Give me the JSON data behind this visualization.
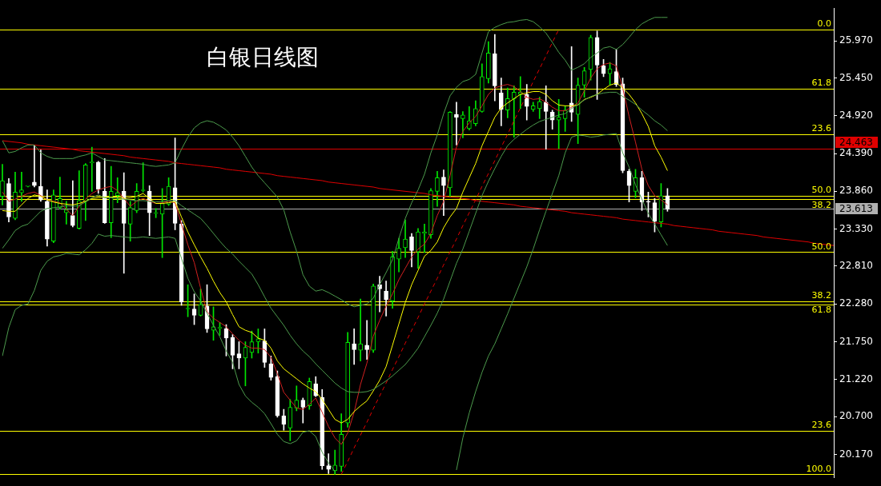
{
  "chart_data": {
    "type": "candlestick",
    "title": "白银日线图",
    "categories": [
      null,
      null,
      null,
      null,
      null,
      null,
      null,
      null,
      null,
      null,
      null,
      null,
      null,
      null,
      null,
      null,
      null,
      null,
      null,
      null,
      null,
      null,
      null,
      null,
      null,
      null,
      null,
      null,
      null,
      null,
      null,
      null,
      null,
      null,
      null,
      null,
      null,
      null,
      null,
      null,
      null,
      null,
      null,
      null,
      null,
      null,
      null,
      null,
      null,
      null,
      null,
      null,
      null,
      null,
      null,
      null,
      null,
      null,
      null,
      null,
      null,
      null,
      null,
      null,
      null,
      null,
      null,
      null,
      null,
      null,
      null,
      null,
      null,
      null,
      null,
      null,
      null,
      null,
      null,
      null,
      null,
      null,
      null,
      null,
      null,
      null,
      null,
      null,
      null,
      null,
      null,
      null,
      null,
      null,
      null,
      null,
      null,
      null,
      null,
      null,
      null,
      null,
      null,
      null,
      null,
      null,
      null,
      null,
      null,
      null,
      null,
      null,
      null,
      null,
      null,
      null,
      null,
      null,
      null,
      null,
      null,
      null,
      null,
      null,
      null,
      null,
      null,
      null,
      null,
      null,
      null
    ],
    "ohlc": [
      [
        23.79,
        24.24,
        23.67,
        24.01
      ],
      [
        23.97,
        24.04,
        23.43,
        23.5
      ],
      [
        23.48,
        24.13,
        23.46,
        23.85
      ],
      [
        23.84,
        24.13,
        23.72,
        23.88
      ],
      [
        23.93,
        23.94,
        23.92,
        23.93
      ],
      [
        23.99,
        24.51,
        23.92,
        23.94
      ],
      [
        23.93,
        24.44,
        23.72,
        23.74
      ],
      [
        23.72,
        23.88,
        23.09,
        23.19
      ],
      [
        23.16,
        23.88,
        23.14,
        23.81
      ],
      [
        23.63,
        24.06,
        23.61,
        23.76
      ],
      [
        23.56,
        23.72,
        23.4,
        23.6
      ],
      [
        23.52,
        24.01,
        23.36,
        23.38
      ],
      [
        23.34,
        24.15,
        23.33,
        23.73
      ],
      [
        23.72,
        24.25,
        23.45,
        24.23
      ],
      [
        24.26,
        24.48,
        23.86,
        24.26
      ],
      [
        24.27,
        24.28,
        23.83,
        23.89
      ],
      [
        23.86,
        24.32,
        23.41,
        23.42
      ],
      [
        23.42,
        24.21,
        23.21,
        23.86
      ],
      [
        23.8,
        24.05,
        23.7,
        23.84
      ],
      [
        23.86,
        24.12,
        22.71,
        23.41
      ],
      [
        23.4,
        23.72,
        23.16,
        23.63
      ],
      [
        23.59,
        23.97,
        23.56,
        23.86
      ],
      [
        23.87,
        24.26,
        23.85,
        23.87
      ],
      [
        23.86,
        23.94,
        23.24,
        23.56
      ],
      [
        23.55,
        23.62,
        23.49,
        23.55
      ],
      [
        23.54,
        23.9,
        22.93,
        23.69
      ],
      [
        23.68,
        24.05,
        23.66,
        23.93
      ],
      [
        23.91,
        24.61,
        23.32,
        23.41
      ],
      [
        23.4,
        23.45,
        22.26,
        22.31
      ],
      [
        22.21,
        22.55,
        22.1,
        22.21
      ],
      [
        22.21,
        22.42,
        21.99,
        22.12
      ],
      [
        22.12,
        22.49,
        22.11,
        22.27
      ],
      [
        22.25,
        22.55,
        21.88,
        21.93
      ],
      [
        21.91,
        22.24,
        21.77,
        21.96
      ],
      [
        21.94,
        22.02,
        21.84,
        21.94
      ],
      [
        21.93,
        21.99,
        21.55,
        21.8
      ],
      [
        21.81,
        21.85,
        21.37,
        21.56
      ],
      [
        21.58,
        21.75,
        21.37,
        21.52
      ],
      [
        21.52,
        21.75,
        21.13,
        21.67
      ],
      [
        21.6,
        21.9,
        21.52,
        21.75
      ],
      [
        21.75,
        21.93,
        21.59,
        21.79
      ],
      [
        21.76,
        21.93,
        21.39,
        21.46
      ],
      [
        21.44,
        21.55,
        21.21,
        21.25
      ],
      [
        21.26,
        21.34,
        20.69,
        20.71
      ],
      [
        20.71,
        20.8,
        20.51,
        20.59
      ],
      [
        20.54,
        20.94,
        20.36,
        20.83
      ],
      [
        20.82,
        21.13,
        20.78,
        20.93
      ],
      [
        20.93,
        20.96,
        20.61,
        20.83
      ],
      [
        20.85,
        21.24,
        20.8,
        21.19
      ],
      [
        21.16,
        21.26,
        20.98,
        20.99
      ],
      [
        20.97,
        21.08,
        19.96,
        20.01
      ],
      [
        20.01,
        20.18,
        19.9,
        19.96
      ],
      [
        19.94,
        20.23,
        19.89,
        20.02
      ],
      [
        20.0,
        20.74,
        19.93,
        20.45
      ],
      [
        20.61,
        21.88,
        20.55,
        21.74
      ],
      [
        21.72,
        21.93,
        21.43,
        21.64
      ],
      [
        21.63,
        22.35,
        21.48,
        21.72
      ],
      [
        21.7,
        22.05,
        21.5,
        21.64
      ],
      [
        21.63,
        22.56,
        21.6,
        22.53
      ],
      [
        22.55,
        22.67,
        22.17,
        22.49
      ],
      [
        22.46,
        22.6,
        22.11,
        22.34
      ],
      [
        22.32,
        23.02,
        22.22,
        22.94
      ],
      [
        22.91,
        23.2,
        22.73,
        23.06
      ],
      [
        23.07,
        23.46,
        22.93,
        23.19
      ],
      [
        23.22,
        23.27,
        22.8,
        23.03
      ],
      [
        23.01,
        23.34,
        22.78,
        23.29
      ],
      [
        23.27,
        23.4,
        23.0,
        23.29
      ],
      [
        23.25,
        23.9,
        23.2,
        23.87
      ],
      [
        23.86,
        24.14,
        23.65,
        24.05
      ],
      [
        24.06,
        24.16,
        23.52,
        23.94
      ],
      [
        23.91,
        24.98,
        23.79,
        24.97
      ],
      [
        24.94,
        25.11,
        24.51,
        24.9
      ],
      [
        24.88,
        24.98,
        24.61,
        24.93
      ],
      [
        24.74,
        25.05,
        24.72,
        24.85
      ],
      [
        24.81,
        25.13,
        24.78,
        25.02
      ],
      [
        24.98,
        25.65,
        24.97,
        25.47
      ],
      [
        25.44,
        25.96,
        25.38,
        25.8
      ],
      [
        25.79,
        26.06,
        25.13,
        25.34
      ],
      [
        25.24,
        25.45,
        24.78,
        25.01
      ],
      [
        25.0,
        25.31,
        24.89,
        25.16
      ],
      [
        25.16,
        25.34,
        24.62,
        25.25
      ],
      [
        25.22,
        25.47,
        25.02,
        25.25
      ],
      [
        25.22,
        25.36,
        24.86,
        25.05
      ],
      [
        25.01,
        25.11,
        24.98,
        25.06
      ],
      [
        25.02,
        25.18,
        24.88,
        25.12
      ],
      [
        25.11,
        25.34,
        24.45,
        24.98
      ],
      [
        24.97,
        25.0,
        24.73,
        24.86
      ],
      [
        24.86,
        25.15,
        24.46,
        24.9
      ],
      [
        24.88,
        25.06,
        24.7,
        25.0
      ],
      [
        25.1,
        25.89,
        24.84,
        24.97
      ],
      [
        24.94,
        25.45,
        24.53,
        25.35
      ],
      [
        25.35,
        25.6,
        25.18,
        25.55
      ],
      [
        25.57,
        26.05,
        25.42,
        26.02
      ],
      [
        26.02,
        26.11,
        25.15,
        25.63
      ],
      [
        25.62,
        25.71,
        25.47,
        25.51
      ],
      [
        25.51,
        25.67,
        25.35,
        25.58
      ],
      [
        25.54,
        25.85,
        25.33,
        25.36
      ],
      [
        25.37,
        25.45,
        24.12,
        24.15
      ],
      [
        24.14,
        24.17,
        23.71,
        23.94
      ],
      [
        23.86,
        24.17,
        23.77,
        24.05
      ],
      [
        24.05,
        24.14,
        23.59,
        23.71
      ],
      [
        23.72,
        23.85,
        23.5,
        23.71
      ],
      [
        23.7,
        23.76,
        23.29,
        23.44
      ],
      [
        23.43,
        23.97,
        23.36,
        23.8
      ],
      [
        23.8,
        23.9,
        23.58,
        23.61
      ],
      null,
      null,
      null,
      null,
      null,
      null,
      null,
      null,
      null,
      null,
      null,
      null,
      null,
      null,
      null,
      null,
      null,
      null,
      null,
      null,
      null,
      null,
      null,
      null,
      null,
      null
    ],
    "colors": [
      "#00e600",
      "#ffffff",
      "#00e600",
      "#00e600",
      "#00e600",
      "#ffffff",
      "#ffffff",
      "#ffffff",
      "#00e600",
      "#00e600",
      "#00e600",
      "#ffffff",
      "#00e600",
      "#00e600",
      "#00e600",
      "#ffffff",
      "#ffffff",
      "#00e600",
      "#00e600",
      "#ffffff",
      "#00e600",
      "#00e600",
      "#00e600",
      "#ffffff",
      "#00e600",
      "#00e600",
      "#00e600",
      "#ffffff",
      "#ffffff",
      "#00e600",
      "#ffffff",
      "#00e600",
      "#ffffff",
      "#00e600",
      "#00e600",
      "#ffffff",
      "#ffffff",
      "#ffffff",
      "#00e600",
      "#00e600",
      "#00e600",
      "#ffffff",
      "#ffffff",
      "#ffffff",
      "#ffffff",
      "#00e600",
      "#00e600",
      "#ffffff",
      "#00e600",
      "#ffffff",
      "#ffffff",
      "#ffffff",
      "#00e600",
      "#00e600",
      "#00e600",
      "#ffffff",
      "#00e600",
      "#ffffff",
      "#00e600",
      "#ffffff",
      "#ffffff",
      "#00e600",
      "#00e600",
      "#00e600",
      "#ffffff",
      "#00e600",
      "#00e600",
      "#00e600",
      "#00e600",
      "#ffffff",
      "#00e600",
      "#ffffff",
      "#00e600",
      "#00e600",
      "#00e600",
      "#00e600",
      "#00e600",
      "#ffffff",
      "#ffffff",
      "#00e600",
      "#00e600",
      "#00e600",
      "#ffffff",
      "#00e600",
      "#00e600",
      "#ffffff",
      "#ffffff",
      "#00e600",
      "#00e600",
      "#ffffff",
      "#00e600",
      "#00e600",
      "#00e600",
      "#ffffff",
      "#ffffff",
      "#00e600",
      "#ffffff",
      "#ffffff",
      "#ffffff",
      "#00e600",
      "#ffffff",
      "#ffffff",
      "#ffffff",
      "#00e600",
      "#ffffff",
      null,
      null,
      null,
      null,
      null,
      null,
      null,
      null,
      null,
      null,
      null,
      null,
      null,
      null,
      null,
      null,
      null,
      null,
      null,
      null,
      null,
      null,
      null,
      null,
      null,
      null
    ],
    "series": [
      {
        "type": "line",
        "color": "#4c9a4c",
        "values": [
          24.57,
          24.4,
          24.42,
          24.47,
          24.51,
          24.51,
          24.4,
          24.35,
          24.32,
          24.32,
          24.32,
          24.32,
          24.35,
          24.37,
          24.4,
          24.35,
          24.3,
          24.29,
          24.28,
          24.27,
          24.26,
          24.25,
          24.24,
          24.22,
          24.21,
          24.22,
          24.23,
          24.26,
          24.45,
          24.62,
          24.75,
          24.82,
          24.85,
          24.83,
          24.78,
          24.72,
          24.62,
          24.5,
          24.35,
          24.2,
          24.08,
          23.98,
          23.88,
          23.78,
          23.6,
          23.29,
          23.02,
          22.69,
          22.53,
          22.46,
          22.48,
          22.44,
          22.39,
          22.34,
          22.28,
          22.24,
          22.26,
          22.28,
          22.36,
          22.55,
          22.72,
          22.9,
          23.2,
          23.48,
          23.7,
          23.88,
          24.1,
          24.4,
          24.65,
          24.95,
          25.2,
          25.32,
          25.4,
          25.43,
          25.5,
          25.8,
          26.1,
          26.16,
          26.2,
          26.23,
          26.24,
          26.26,
          26.27,
          26.24,
          26.17,
          26.08,
          25.95,
          25.81,
          25.7,
          25.56,
          25.6,
          25.65,
          25.74,
          25.8,
          25.87,
          25.89,
          25.85,
          25.92,
          26.02,
          26.13,
          26.21,
          26.26,
          26.3,
          26.3,
          26.3,
          null,
          null,
          null,
          null,
          null,
          null,
          null,
          null,
          null,
          null,
          null,
          null,
          null,
          null,
          null,
          null,
          null,
          null,
          null,
          null,
          null,
          null,
          null,
          null,
          null,
          null
        ]
      },
      {
        "type": "line",
        "color": "#4c9a4c",
        "values": [
          23.06,
          23.18,
          23.31,
          23.37,
          23.4,
          23.49,
          23.58,
          23.62,
          23.63,
          23.64,
          23.66,
          23.65,
          23.66,
          23.71,
          23.77,
          23.81,
          23.77,
          23.77,
          23.76,
          23.75,
          23.74,
          23.73,
          23.73,
          23.72,
          23.71,
          23.72,
          23.73,
          23.73,
          23.66,
          23.6,
          23.54,
          23.48,
          23.38,
          23.27,
          23.16,
          23.06,
          22.98,
          22.88,
          22.79,
          22.7,
          22.55,
          22.38,
          22.22,
          22.1,
          21.98,
          21.84,
          21.72,
          21.62,
          21.54,
          21.44,
          21.35,
          21.26,
          21.17,
          21.1,
          21.05,
          21.04,
          21.04,
          21.05,
          21.08,
          21.14,
          21.2,
          21.27,
          21.35,
          21.43,
          21.54,
          21.66,
          21.82,
          21.98,
          22.15,
          22.35,
          22.6,
          22.85,
          23.05,
          23.3,
          23.55,
          23.8,
          24.0,
          24.18,
          24.35,
          24.5,
          24.59,
          24.66,
          24.73,
          24.79,
          24.84,
          24.87,
          24.9,
          24.93,
          24.95,
          25.02,
          25.08,
          25.14,
          25.19,
          25.22,
          25.24,
          25.25,
          25.25,
          25.19,
          25.14,
          25.08,
          25.0,
          24.93,
          24.85,
          24.79,
          24.71,
          null,
          null,
          null,
          null,
          null,
          null,
          null,
          null,
          null,
          null,
          null,
          null,
          null,
          null,
          null,
          null,
          null,
          null,
          null,
          null,
          null,
          null,
          null,
          null,
          null,
          null
        ]
      },
      {
        "type": "line",
        "color": "#4c9a4c",
        "values": [
          21.55,
          21.95,
          22.2,
          22.26,
          22.28,
          22.47,
          22.75,
          22.88,
          22.94,
          22.96,
          22.99,
          22.98,
          22.97,
          23.04,
          23.13,
          23.26,
          23.23,
          23.24,
          23.23,
          23.22,
          23.21,
          23.21,
          23.22,
          23.21,
          23.2,
          23.21,
          23.22,
          23.2,
          22.92,
          22.64,
          22.45,
          22.32,
          22.15,
          21.98,
          21.82,
          21.62,
          21.46,
          21.15,
          20.99,
          20.9,
          20.83,
          20.74,
          20.6,
          20.45,
          20.35,
          20.32,
          20.36,
          20.48,
          20.5,
          20.42,
          20.2,
          20.05,
          19.93,
          null,
          null,
          null,
          null,
          null,
          null,
          null,
          null,
          null,
          null,
          null,
          null,
          null,
          null,
          null,
          null,
          null,
          null,
          19.95,
          20.4,
          20.75,
          21.05,
          21.32,
          21.55,
          21.72,
          21.93,
          22.14,
          22.36,
          22.58,
          22.8,
          23.05,
          23.32,
          23.58,
          23.83,
          24.08,
          24.4,
          24.62,
          24.65,
          24.64,
          24.62,
          24.63,
          24.65,
          24.66,
          24.67,
          24.4,
          24.2,
          23.95,
          23.75,
          23.55,
          23.4,
          23.25,
          23.1,
          null,
          null,
          null,
          null,
          null,
          null,
          null,
          null,
          null,
          null,
          null,
          null,
          null,
          null,
          null,
          null,
          null,
          null,
          null,
          null,
          null,
          null,
          null,
          null,
          null,
          null
        ]
      },
      {
        "type": "line",
        "color": "#ffff00",
        "values": [
          23.59,
          23.58,
          23.58,
          23.67,
          23.76,
          23.81,
          23.79,
          23.74,
          23.71,
          23.69,
          23.68,
          23.67,
          23.69,
          23.72,
          23.76,
          23.77,
          23.78,
          23.78,
          23.78,
          23.76,
          23.77,
          23.79,
          23.83,
          23.76,
          23.69,
          23.69,
          23.7,
          23.72,
          23.5,
          23.29,
          23.11,
          22.94,
          22.78,
          22.6,
          22.44,
          22.31,
          22.13,
          21.96,
          21.91,
          21.88,
          21.8,
          21.77,
          21.66,
          21.48,
          21.37,
          21.3,
          21.23,
          21.16,
          21.1,
          21.05,
          20.94,
          20.8,
          20.66,
          20.61,
          20.66,
          20.77,
          20.85,
          20.92,
          21.06,
          21.21,
          21.4,
          21.7,
          22.0,
          22.3,
          22.55,
          22.75,
          22.95,
          23.03,
          23.15,
          23.35,
          23.5,
          23.62,
          23.85,
          24.05,
          24.25,
          24.5,
          24.7,
          24.9,
          25.03,
          25.1,
          25.16,
          25.22,
          25.24,
          25.26,
          25.26,
          25.22,
          25.13,
          25.07,
          25.06,
          25.06,
          25.07,
          25.15,
          25.18,
          25.22,
          25.29,
          25.35,
          25.38,
          25.31,
          25.22,
          25.1,
          24.95,
          24.77,
          24.5,
          24.34,
          24.15,
          null,
          null,
          null,
          null,
          null,
          null,
          null,
          null,
          null,
          null,
          null,
          null,
          null,
          null,
          null,
          null,
          null,
          null,
          null,
          null,
          null,
          null,
          null,
          null,
          null,
          null
        ]
      },
      {
        "type": "line",
        "color": "#d02020",
        "values": [
          23.85,
          23.72,
          23.75,
          23.79,
          23.83,
          23.85,
          23.8,
          23.74,
          23.72,
          23.7,
          23.61,
          23.52,
          23.65,
          23.75,
          23.83,
          23.88,
          23.91,
          23.93,
          23.87,
          23.76,
          23.65,
          23.72,
          23.76,
          23.72,
          23.69,
          23.7,
          23.72,
          23.7,
          23.4,
          23.11,
          22.86,
          22.5,
          22.17,
          22.08,
          22.02,
          21.96,
          21.86,
          21.77,
          21.7,
          21.66,
          21.66,
          21.64,
          21.53,
          21.3,
          21.04,
          20.93,
          20.82,
          20.8,
          20.87,
          20.96,
          20.76,
          20.56,
          20.4,
          20.31,
          20.47,
          20.76,
          21.15,
          21.45,
          21.83,
          22.05,
          22.25,
          22.42,
          22.62,
          22.78,
          22.94,
          23.05,
          23.12,
          23.27,
          23.52,
          23.72,
          24.08,
          24.48,
          24.7,
          24.82,
          24.91,
          25.06,
          25.22,
          25.31,
          25.34,
          25.36,
          25.33,
          25.26,
          25.18,
          25.15,
          25.16,
          25.11,
          25.04,
          24.99,
          24.99,
          25.04,
          25.1,
          25.27,
          25.45,
          25.58,
          25.64,
          25.66,
          25.62,
          25.31,
          24.91,
          24.55,
          24.17,
          23.94,
          23.8,
          23.74,
          23.67,
          null,
          null,
          null,
          null,
          null,
          null,
          null,
          null,
          null,
          null,
          null,
          null,
          null,
          null,
          null,
          null,
          null,
          null,
          null,
          null,
          null,
          null,
          null,
          null,
          null,
          null
        ]
      },
      {
        "type": "line",
        "color": "#e00000",
        "values": [
          24.57,
          24.56,
          24.55,
          24.54,
          24.52,
          24.51,
          24.5,
          24.49,
          24.48,
          24.47,
          24.46,
          24.45,
          24.43,
          24.42,
          24.41,
          24.4,
          24.39,
          24.38,
          24.37,
          24.36,
          24.34,
          24.33,
          24.32,
          24.31,
          24.3,
          24.29,
          24.28,
          24.26,
          24.25,
          24.24,
          24.23,
          24.22,
          24.21,
          24.2,
          24.19,
          24.17,
          24.16,
          24.15,
          24.14,
          24.13,
          24.12,
          24.11,
          24.1,
          24.08,
          24.07,
          24.06,
          24.05,
          24.04,
          24.03,
          24.02,
          24.01,
          23.99,
          23.98,
          23.97,
          23.96,
          23.95,
          23.94,
          23.93,
          23.92,
          23.9,
          23.89,
          23.88,
          23.87,
          23.86,
          23.85,
          23.84,
          23.83,
          23.81,
          23.8,
          23.79,
          23.78,
          23.77,
          23.76,
          23.75,
          23.73,
          23.72,
          23.71,
          23.7,
          23.69,
          23.68,
          23.67,
          23.65,
          23.64,
          23.63,
          23.62,
          23.61,
          23.6,
          23.59,
          23.58,
          23.56,
          23.55,
          23.54,
          23.53,
          23.52,
          23.51,
          23.5,
          23.49,
          23.47,
          23.46,
          23.45,
          23.44,
          23.43,
          23.42,
          23.41,
          23.4,
          23.38,
          23.37,
          23.36,
          23.35,
          23.34,
          23.33,
          23.32,
          23.3,
          23.29,
          23.28,
          23.27,
          23.26,
          23.25,
          23.24,
          23.22,
          23.21,
          23.2,
          23.19,
          23.18,
          23.17,
          23.16,
          23.15,
          23.13,
          23.12,
          23.11,
          23.1
        ]
      },
      {
        "type": "line",
        "color": "#e00000",
        "line_style": "dashed",
        "values": [
          null,
          null,
          null,
          null,
          null,
          null,
          null,
          null,
          null,
          null,
          null,
          null,
          null,
          null,
          null,
          null,
          null,
          null,
          null,
          null,
          null,
          null,
          null,
          null,
          null,
          null,
          null,
          null,
          null,
          null,
          null,
          null,
          null,
          null,
          null,
          null,
          null,
          null,
          null,
          null,
          null,
          null,
          null,
          null,
          null,
          null,
          null,
          null,
          null,
          null,
          null,
          null,
          null,
          19.89,
          20.07,
          20.26,
          20.44,
          20.62,
          20.81,
          20.99,
          21.17,
          21.36,
          21.54,
          21.73,
          21.91,
          22.09,
          22.28,
          22.46,
          22.64,
          22.83,
          23.01,
          23.19,
          23.38,
          23.56,
          23.74,
          23.93,
          24.11,
          24.29,
          24.48,
          24.66,
          24.85,
          25.03,
          25.21,
          25.4,
          25.58,
          25.76,
          25.95,
          26.13,
          null,
          null,
          null,
          null,
          null,
          null,
          null,
          null,
          null,
          null,
          null,
          null,
          null,
          null,
          null,
          null,
          null,
          null,
          null,
          null,
          null,
          null,
          null,
          null,
          null,
          null,
          null,
          null,
          null,
          null,
          null,
          null,
          null,
          null,
          null,
          null,
          null,
          null,
          null,
          null,
          null,
          null,
          null
        ]
      }
    ],
    "ref_lines": [
      {
        "axis": "y",
        "value": 26.13,
        "color": "#ffff00"
      },
      {
        "axis": "y",
        "value": 25.3,
        "color": "#ffff00"
      },
      {
        "axis": "y",
        "value": 24.66,
        "color": "#ffff00"
      },
      {
        "axis": "y",
        "value": 23.8,
        "color": "#ffff00"
      },
      {
        "axis": "y",
        "value": 23.75,
        "color": "#ffff00"
      },
      {
        "axis": "y",
        "value": 23.01,
        "color": "#ffff00"
      },
      {
        "axis": "y",
        "value": 22.32,
        "color": "#ffff00"
      },
      {
        "axis": "y",
        "value": 22.27,
        "color": "#ffff00"
      },
      {
        "axis": "y",
        "value": 20.5,
        "color": "#ffff00"
      },
      {
        "axis": "y",
        "value": 19.89,
        "color": "#ffff00"
      },
      {
        "axis": "y",
        "value": 24.463,
        "label": "24.463",
        "color": "#e00000"
      },
      {
        "axis": "y",
        "value": 23.613,
        "label": "23.613",
        "color": "#b0b0b0"
      }
    ],
    "annotations": [
      {
        "text": "0.0",
        "y": 26.13
      },
      {
        "text": "61.8",
        "y": 25.3
      },
      {
        "text": "23.6",
        "y": 24.66
      },
      {
        "text": "50.0",
        "y": 23.8
      },
      {
        "text": "38.2",
        "y": 23.75
      },
      {
        "text": "50.0",
        "y": 23.01
      },
      {
        "text": "38.2",
        "y": 22.32
      },
      {
        "text": "61.8",
        "y": 22.27
      },
      {
        "text": "23.6",
        "y": 20.5
      },
      {
        "text": "100.0",
        "y": 19.89
      }
    ],
    "ylim": [
      19.84,
      26.43
    ],
    "yticks": [
      {
        "value": 20.17,
        "label": "20.170"
      },
      {
        "value": 20.7,
        "label": "20.700"
      },
      {
        "value": 21.22,
        "label": "21.220"
      },
      {
        "value": 21.75,
        "label": "21.750"
      },
      {
        "value": 22.28,
        "label": "22.280"
      },
      {
        "value": 22.81,
        "label": "22.810"
      },
      {
        "value": 23.33,
        "label": "23.330"
      },
      {
        "value": 23.86,
        "label": "23.860"
      },
      {
        "value": 24.39,
        "label": "24.390"
      },
      {
        "value": 24.92,
        "label": "24.920"
      },
      {
        "value": 25.45,
        "label": "25.450"
      },
      {
        "value": 25.97,
        "label": "25.970"
      }
    ],
    "tick_labels": "y"
  }
}
